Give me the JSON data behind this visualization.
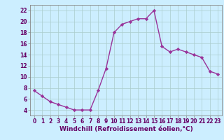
{
  "x": [
    0,
    1,
    2,
    3,
    4,
    5,
    6,
    7,
    8,
    9,
    10,
    11,
    12,
    13,
    14,
    15,
    16,
    17,
    18,
    19,
    20,
    21,
    22,
    23
  ],
  "y": [
    7.5,
    6.5,
    5.5,
    5.0,
    4.5,
    4.0,
    4.0,
    4.0,
    7.5,
    11.5,
    18.0,
    19.5,
    20.0,
    20.5,
    20.5,
    22.0,
    15.5,
    14.5,
    15.0,
    14.5,
    14.0,
    13.5,
    11.0,
    10.5
  ],
  "line_color": "#993399",
  "marker": "D",
  "marker_size": 2.2,
  "bg_color": "#cceeff",
  "grid_color": "#aacccc",
  "xlabel": "Windchill (Refroidissement éolien,°C)",
  "xlim": [
    -0.5,
    23.5
  ],
  "ylim": [
    3,
    23
  ],
  "yticks": [
    4,
    6,
    8,
    10,
    12,
    14,
    16,
    18,
    20,
    22
  ],
  "xticks": [
    0,
    1,
    2,
    3,
    4,
    5,
    6,
    7,
    8,
    9,
    10,
    11,
    12,
    13,
    14,
    15,
    16,
    17,
    18,
    19,
    20,
    21,
    22,
    23
  ],
  "tick_labelsize": 5.5,
  "xlabel_fontsize": 6.5,
  "line_width": 1.0,
  "label_color": "#660066",
  "spine_color": "#888888"
}
